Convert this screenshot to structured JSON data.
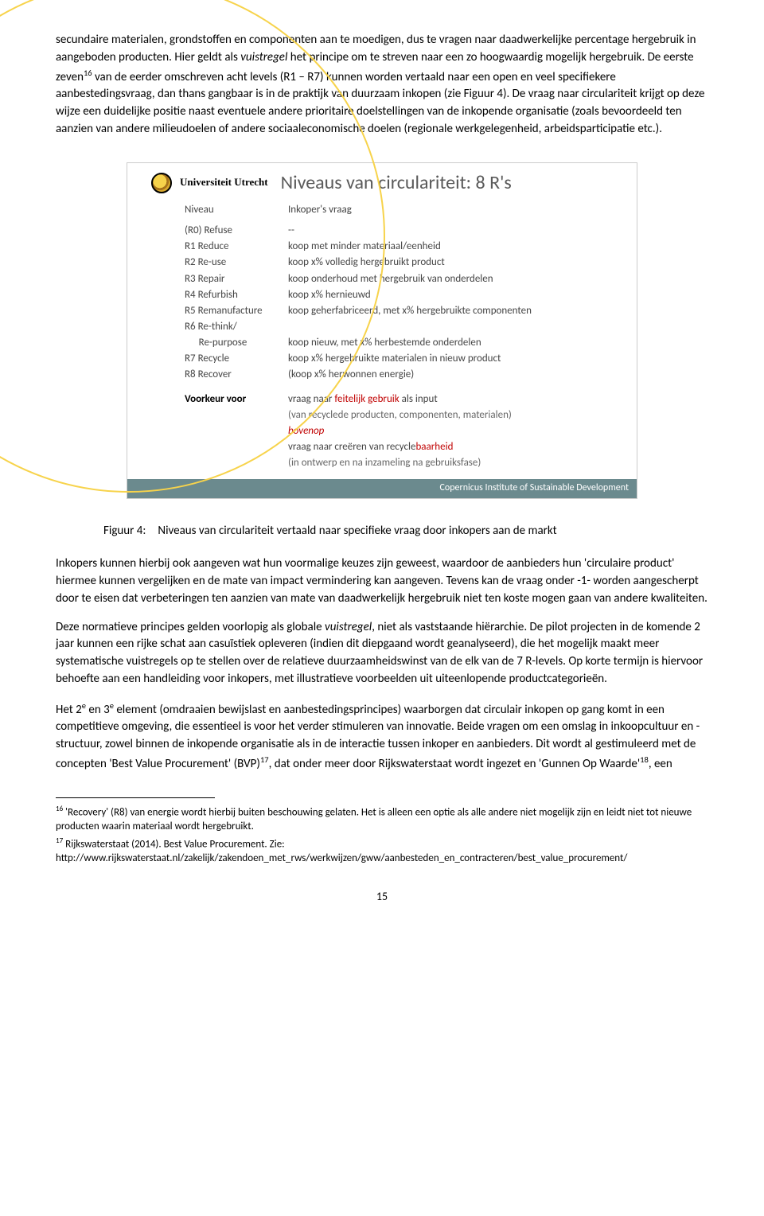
{
  "para1_a": "secundaire materialen, grondstoffen en componenten aan te moedigen, dus te vragen naar daadwerkelijke percentage hergebruik in aangeboden producten. Hier geldt als ",
  "para1_i": "vuistregel",
  "para1_b": " het principe om te streven naar een zo hoogwaardig mogelijk hergebruik. De eerste zeven",
  "para1_sup": "16",
  "para1_c": " van de eerder omschreven acht levels (R1 – R7) kunnen worden vertaald naar een open en veel specifiekere aanbestedingsvraag, dan thans gangbaar is in de praktijk van duurzaam inkopen (zie Figuur 4). De vraag naar circulariteit krijgt op deze wijze een duidelijke positie naast eventuele andere prioritaire doelstellingen van de inkopende organisatie (zoals bevoordeeld ten aanzien van andere milieudoelen of andere sociaaleconomische doelen (regionale werkgelegenheid, arbeidsparticipatie etc.).",
  "fig": {
    "uu_text": "Universiteit Utrecht",
    "title": "Niveaus van circulariteit: 8 R's",
    "head_c1": "Niveau",
    "head_c2": "Inkoper's vraag",
    "rows": [
      {
        "c1": "(R0) Refuse",
        "c2": "--"
      },
      {
        "c1": "R1   Reduce",
        "c2": "koop met minder materiaal/eenheid"
      },
      {
        "c1": "R2   Re-use",
        "c2": "koop x% volledig hergebruikt product"
      },
      {
        "c1": "R3   Repair",
        "c2": "koop onderhoud met hergebruik van onderdelen"
      },
      {
        "c1": "R4   Refurbish",
        "c2": "koop x% hernieuwd"
      },
      {
        "c1": "R5   Remanufacture",
        "c2": "koop geherfabriceerd, met x% hergebruikte componenten"
      },
      {
        "c1": "R6   Re-think/",
        "c2": ""
      },
      {
        "c1": "      Re-purpose",
        "c2": "koop nieuw, met x% herbestemde onderdelen"
      },
      {
        "c1": "R7   Recycle",
        "c2": "koop x% hergebruikte materialen in nieuw product"
      },
      {
        "c1": "R8   Recover",
        "c2": "(koop x% herwonnen energie)"
      }
    ],
    "pref_label": "Voorkeur voor",
    "pref_l1_a": "vraag naar ",
    "pref_l1_red": "feitelijk gebruik",
    "pref_l1_b": " als input",
    "pref_l2": "(van recyclede producten, componenten, materialen)",
    "pref_l3": "bovenop",
    "pref_l4_a": "vraag naar creëren van recycle",
    "pref_l4_red": "baarheid",
    "pref_l5": "(in ontwerp en na inzameling na gebruiksfase)",
    "footer": "Copernicus Institute of Sustainable Development"
  },
  "caption": "Figuur 4: Niveaus van circulariteit vertaald naar specifieke vraag door inkopers aan de markt",
  "para2": "Inkopers kunnen hierbij ook aangeven wat hun voormalige keuzes zijn geweest, waardoor de aanbieders hun 'circulaire product' hiermee kunnen vergelijken en de mate van impact vermindering kan aangeven. Tevens kan de vraag onder -1- worden aangescherpt door te eisen dat verbeteringen ten aanzien van mate van daadwerkelijk hergebruik niet ten koste mogen gaan van andere kwaliteiten.",
  "para3_a": "Deze normatieve principes gelden voorlopig als globale ",
  "para3_i": "vuistregel",
  "para3_b": ", niet als vaststaande hiërarchie. De pilot projecten in de komende 2 jaar kunnen een rijke schat aan casuïstiek opleveren (indien dit diepgaand wordt geanalyseerd), die het mogelijk maakt meer systematische vuistregels op te stellen over de relatieve duurzaamheidswinst van de elk van de 7 R-levels. Op korte termijn is hiervoor behoefte aan een handleiding voor inkopers, met illustratieve voorbeelden uit uiteenlopende productcategorieën.",
  "para4_a": "Het 2",
  "para4_e1": "e",
  "para4_b": " en 3",
  "para4_e2": "e",
  "para4_c": " element (omdraaien bewijslast en aanbestedingsprincipes) waarborgen dat circulair inkopen op gang komt in een competitieve omgeving, die essentieel is voor het verder stimuleren van innovatie. Beide vragen om een omslag in inkoopcultuur en -structuur, zowel binnen de inkopende organisatie als in de interactie tussen inkoper en aanbieders.  Dit wordt al gestimuleerd met de concepten 'Best Value Procurement' (BVP)",
  "para4_sup1": "17",
  "para4_d": ", dat onder meer door Rijkswaterstaat wordt ingezet en 'Gunnen Op Waarde'",
  "para4_sup2": "18",
  "para4_e": ", een",
  "fn16_sup": "16",
  "fn16": " 'Recovery' (R8) van energie wordt hierbij buiten beschouwing gelaten. Het is alleen een optie als alle andere niet mogelijk zijn en leidt niet tot nieuwe producten waarin materiaal wordt hergebruikt.",
  "fn17_sup": "17",
  "fn17_a": " Rijkswaterstaat (2014). Best Value Procurement. Zie:",
  "fn17_url": "http://www.rijkswaterstaat.nl/zakelijk/zakendoen_met_rws/werkwijzen/gww/aanbesteden_en_contracteren/best_value_procurement/",
  "page_num": "15"
}
